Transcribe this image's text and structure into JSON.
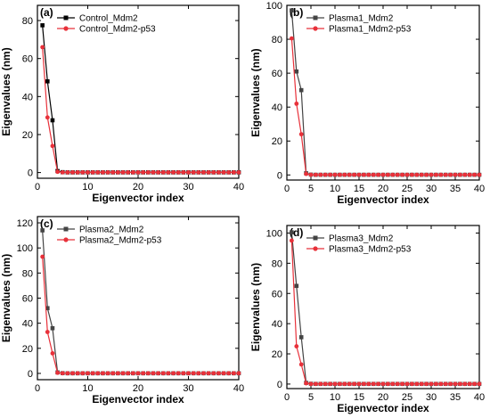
{
  "chart_data": [
    {
      "panel_label": "(a)",
      "type": "line",
      "xlabel": "Eigenvector index",
      "ylabel": "Eigenvalues (nm)",
      "xlim": [
        0,
        40
      ],
      "ylim": [
        -3,
        88
      ],
      "xticks": [
        "0",
        "10",
        "20",
        "30",
        "40"
      ],
      "yticks": [
        "0",
        "20",
        "40",
        "60",
        "80"
      ],
      "legend_position": "top-right",
      "series": [
        {
          "name": "Control_Mdm2",
          "color": "#000000",
          "marker": "square",
          "values": [
            77.5,
            48.0,
            27.5,
            0.8,
            0.2,
            0.1,
            0.1,
            0.1,
            0.1,
            0.1,
            0.1,
            0.1,
            0.1,
            0.1,
            0.1,
            0.1,
            0.1,
            0.1,
            0.1,
            0.1,
            0.1,
            0.1,
            0.1,
            0.1,
            0.1,
            0.1,
            0.1,
            0.1,
            0.1,
            0.1,
            0.1,
            0.1,
            0.1,
            0.1,
            0.1,
            0.1,
            0.1,
            0.1,
            0.1,
            0.1
          ]
        },
        {
          "name": "Control_Mdm2-p53",
          "color": "#e8313a",
          "marker": "circle",
          "values": [
            66.0,
            29.0,
            14.0,
            0.4,
            0.1,
            0.1,
            0.1,
            0.1,
            0.1,
            0.1,
            0.1,
            0.1,
            0.1,
            0.1,
            0.1,
            0.1,
            0.1,
            0.1,
            0.1,
            0.1,
            0.1,
            0.1,
            0.1,
            0.1,
            0.1,
            0.1,
            0.1,
            0.1,
            0.1,
            0.1,
            0.1,
            0.1,
            0.1,
            0.1,
            0.1,
            0.1,
            0.1,
            0.1,
            0.1,
            0.1
          ]
        }
      ]
    },
    {
      "panel_label": "(b)",
      "type": "line",
      "xlabel": "Eigenvector index",
      "ylabel": "Eigenvalues (nm)",
      "xlim": [
        0,
        40
      ],
      "ylim": [
        -3,
        100
      ],
      "xticks": [
        "0",
        "5",
        "10",
        "15",
        "20",
        "25",
        "30",
        "35",
        "40"
      ],
      "yticks": [
        "0",
        "20",
        "40",
        "60",
        "80",
        "100"
      ],
      "legend_position": "top-right",
      "series": [
        {
          "name": "Plasma1_Mdm2",
          "color": "#444444",
          "marker": "square",
          "values": [
            97.0,
            61.0,
            50.0,
            1.0,
            0.2,
            0.1,
            0.1,
            0.1,
            0.1,
            0.1,
            0.1,
            0.1,
            0.1,
            0.1,
            0.1,
            0.1,
            0.1,
            0.1,
            0.1,
            0.1,
            0.1,
            0.1,
            0.1,
            0.1,
            0.1,
            0.1,
            0.1,
            0.1,
            0.1,
            0.1,
            0.1,
            0.1,
            0.1,
            0.1,
            0.1,
            0.1,
            0.1,
            0.1,
            0.1,
            0.1
          ]
        },
        {
          "name": "Plasma1_Mdm2-p53",
          "color": "#e8313a",
          "marker": "circle",
          "values": [
            80.5,
            42.0,
            24.0,
            0.6,
            0.1,
            0.1,
            0.1,
            0.1,
            0.1,
            0.1,
            0.1,
            0.1,
            0.1,
            0.1,
            0.1,
            0.1,
            0.1,
            0.1,
            0.1,
            0.1,
            0.1,
            0.1,
            0.1,
            0.1,
            0.1,
            0.1,
            0.1,
            0.1,
            0.1,
            0.1,
            0.1,
            0.1,
            0.1,
            0.1,
            0.1,
            0.1,
            0.1,
            0.1,
            0.1,
            0.1
          ]
        }
      ]
    },
    {
      "panel_label": "(c)",
      "type": "line",
      "xlabel": "Eigenvector index",
      "ylabel": "Eigenvalues (nm)",
      "xlim": [
        0,
        40
      ],
      "ylim": [
        -5,
        125
      ],
      "xticks": [
        "0",
        "10",
        "20",
        "30",
        "40"
      ],
      "yticks": [
        "0",
        "20",
        "40",
        "60",
        "80",
        "100",
        "120"
      ],
      "legend_position": "top-right",
      "series": [
        {
          "name": "Plasma2_Mdm2",
          "color": "#444444",
          "marker": "square",
          "values": [
            114.0,
            52.0,
            36.0,
            0.8,
            0.2,
            0.1,
            0.1,
            0.1,
            0.1,
            0.1,
            0.1,
            0.1,
            0.1,
            0.1,
            0.1,
            0.1,
            0.1,
            0.1,
            0.1,
            0.1,
            0.1,
            0.1,
            0.1,
            0.1,
            0.1,
            0.1,
            0.1,
            0.1,
            0.1,
            0.1,
            0.1,
            0.1,
            0.1,
            0.1,
            0.1,
            0.1,
            0.1,
            0.1,
            0.1,
            0.1
          ]
        },
        {
          "name": "Plasma2_Mdm2-p53",
          "color": "#e8313a",
          "marker": "circle",
          "values": [
            93.0,
            33.0,
            16.0,
            0.5,
            0.1,
            0.1,
            0.1,
            0.1,
            0.1,
            0.1,
            0.1,
            0.1,
            0.1,
            0.1,
            0.1,
            0.1,
            0.1,
            0.1,
            0.1,
            0.1,
            0.1,
            0.1,
            0.1,
            0.1,
            0.1,
            0.1,
            0.1,
            0.1,
            0.1,
            0.1,
            0.1,
            0.1,
            0.1,
            0.1,
            0.1,
            0.1,
            0.1,
            0.1,
            0.1,
            0.1
          ]
        }
      ]
    },
    {
      "panel_label": "(d)",
      "type": "line",
      "xlabel": "Eigenvector index",
      "ylabel": "Eigenvalues (nm)",
      "xlim": [
        0,
        40
      ],
      "ylim": [
        -3,
        105
      ],
      "xticks": [
        "0",
        "5",
        "10",
        "15",
        "20",
        "25",
        "30",
        "35",
        "40"
      ],
      "yticks": [
        "0",
        "20",
        "40",
        "60",
        "80",
        "100"
      ],
      "legend_position": "top-right",
      "series": [
        {
          "name": "Plasma3_Mdm2",
          "color": "#444444",
          "marker": "square",
          "values": [
            100.5,
            65.0,
            31.0,
            0.8,
            0.2,
            0.1,
            0.1,
            0.1,
            0.1,
            0.1,
            0.1,
            0.1,
            0.1,
            0.1,
            0.1,
            0.1,
            0.1,
            0.1,
            0.1,
            0.1,
            0.1,
            0.1,
            0.1,
            0.1,
            0.1,
            0.1,
            0.1,
            0.1,
            0.1,
            0.1,
            0.1,
            0.1,
            0.1,
            0.1,
            0.1,
            0.1,
            0.1,
            0.1,
            0.1,
            0.1
          ]
        },
        {
          "name": "Plasma3_Mdm2-p53",
          "color": "#e8313a",
          "marker": "circle",
          "values": [
            95.0,
            25.0,
            13.0,
            0.5,
            0.1,
            0.1,
            0.1,
            0.1,
            0.1,
            0.1,
            0.1,
            0.1,
            0.1,
            0.1,
            0.1,
            0.1,
            0.1,
            0.1,
            0.1,
            0.1,
            0.1,
            0.1,
            0.1,
            0.1,
            0.1,
            0.1,
            0.1,
            0.1,
            0.1,
            0.1,
            0.1,
            0.1,
            0.1,
            0.1,
            0.1,
            0.1,
            0.1,
            0.1,
            0.1,
            0.1
          ]
        }
      ]
    }
  ]
}
